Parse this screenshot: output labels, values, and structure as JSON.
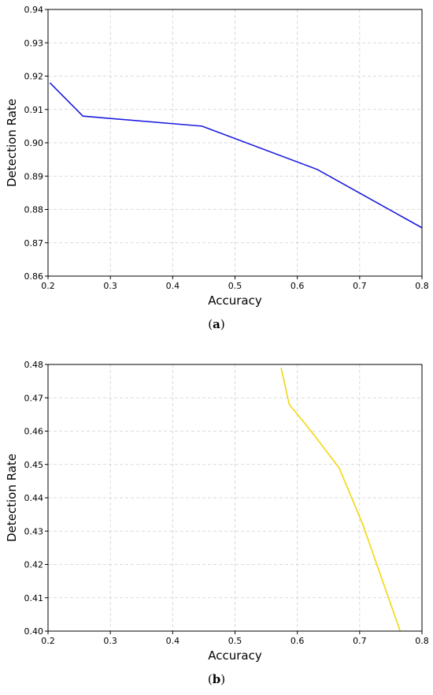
{
  "chart_data": [
    {
      "type": "line",
      "xlabel": "Accuracy",
      "ylabel": "Detection Rate",
      "caption_label": "a",
      "xlim": [
        0.2,
        0.8
      ],
      "ylim": [
        0.86,
        0.94
      ],
      "xticks": [
        "0.2",
        "0.3",
        "0.4",
        "0.5",
        "0.6",
        "0.7",
        "0.8"
      ],
      "yticks": [
        "0.86",
        "0.87",
        "0.88",
        "0.89",
        "0.90",
        "0.91",
        "0.92",
        "0.93",
        "0.94"
      ],
      "grid": true,
      "color": "#1a1adf",
      "series": [
        {
          "x": [
            0.203,
            0.256,
            0.447,
            0.632,
            0.8
          ],
          "y": [
            0.918,
            0.908,
            0.905,
            0.892,
            0.8745
          ]
        }
      ]
    },
    {
      "type": "line",
      "xlabel": "Accuracy",
      "ylabel": "Detection Rate",
      "caption_label": "b",
      "xlim": [
        0.2,
        0.8
      ],
      "ylim": [
        0.4,
        0.48
      ],
      "xticks": [
        "0.2",
        "0.3",
        "0.4",
        "0.5",
        "0.6",
        "0.7",
        "0.8"
      ],
      "yticks": [
        "0.40",
        "0.41",
        "0.42",
        "0.43",
        "0.44",
        "0.45",
        "0.46",
        "0.47",
        "0.48"
      ],
      "grid": true,
      "color": "#f2d80d",
      "series": [
        {
          "x": [
            0.574,
            0.587,
            0.62,
            0.667,
            0.705,
            0.765
          ],
          "y": [
            0.479,
            0.468,
            0.4605,
            0.449,
            0.432,
            0.4
          ]
        }
      ]
    }
  ]
}
